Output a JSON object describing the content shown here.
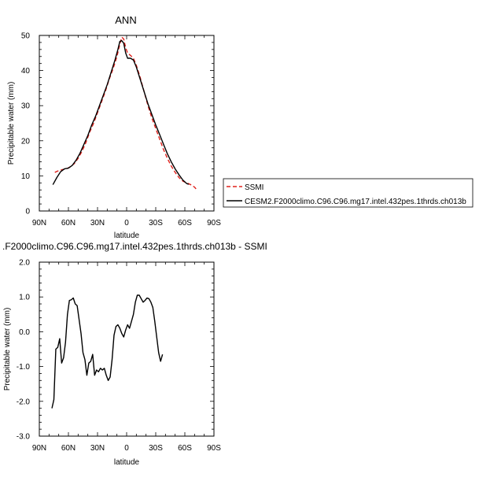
{
  "chart_data": [
    {
      "type": "line",
      "title": "ANN",
      "xlabel": "latitude",
      "ylabel": "Precipitable water (mm)",
      "xticks": [
        "90N",
        "60N",
        "30N",
        "0",
        "30S",
        "60S",
        "90S"
      ],
      "yticks": [
        "0",
        "10",
        "20",
        "30",
        "40",
        "50"
      ],
      "xlim": [
        -90,
        90
      ],
      "ylim": [
        0,
        50
      ],
      "x_direction": "north-to-south",
      "grid": false,
      "legend_position": "right",
      "series": [
        {
          "name": "SSMI",
          "color": "#e0201b",
          "dash": "dashed",
          "points": [
            [
              -74,
              11.0
            ],
            [
              -70,
              11.5
            ],
            [
              -66,
              11.8
            ],
            [
              -62,
              12.0
            ],
            [
              -58,
              12.6
            ],
            [
              -54,
              13.5
            ],
            [
              -50,
              15.0
            ],
            [
              -46,
              17.0
            ],
            [
              -42,
              19.5
            ],
            [
              -38,
              22.5
            ],
            [
              -34,
              25.0
            ],
            [
              -30,
              28.0
            ],
            [
              -26,
              31.0
            ],
            [
              -22,
              34.0
            ],
            [
              -18,
              37.5
            ],
            [
              -14,
              40.5
            ],
            [
              -10,
              44.0
            ],
            [
              -7,
              47.5
            ],
            [
              -5,
              49.5
            ],
            [
              -3,
              49.0
            ],
            [
              -1,
              46.5
            ],
            [
              1,
              45.0
            ],
            [
              4,
              44.3
            ],
            [
              7,
              43.5
            ],
            [
              10,
              41.5
            ],
            [
              14,
              38.0
            ],
            [
              18,
              34.0
            ],
            [
              22,
              30.0
            ],
            [
              26,
              26.5
            ],
            [
              30,
              23.5
            ],
            [
              34,
              20.5
            ],
            [
              38,
              17.5
            ],
            [
              42,
              15.0
            ],
            [
              46,
              12.8
            ],
            [
              50,
              11.0
            ],
            [
              54,
              9.5
            ],
            [
              58,
              8.5
            ],
            [
              62,
              8.0
            ],
            [
              66,
              7.5
            ],
            [
              70,
              6.8
            ],
            [
              73,
              5.8
            ]
          ]
        },
        {
          "name": "CESM2.F2000climo.C96.C96.mg17.intel.432pes.1thrds.ch013b",
          "color": "#000000",
          "dash": "solid",
          "points": [
            [
              -76,
              7.5
            ],
            [
              -72,
              9.5
            ],
            [
              -68,
              11.2
            ],
            [
              -64,
              12.0
            ],
            [
              -60,
              12.2
            ],
            [
              -56,
              13.0
            ],
            [
              -52,
              14.5
            ],
            [
              -48,
              16.5
            ],
            [
              -44,
              19.0
            ],
            [
              -40,
              21.5
            ],
            [
              -36,
              24.5
            ],
            [
              -32,
              27.0
            ],
            [
              -28,
              30.0
            ],
            [
              -24,
              33.0
            ],
            [
              -20,
              36.0
            ],
            [
              -16,
              39.5
            ],
            [
              -12,
              43.0
            ],
            [
              -9,
              46.0
            ],
            [
              -7,
              48.3
            ],
            [
              -5,
              48.5
            ],
            [
              -3,
              47.8
            ],
            [
              -1,
              45.0
            ],
            [
              1,
              43.5
            ],
            [
              4,
              43.5
            ],
            [
              7,
              43.0
            ],
            [
              10,
              41.0
            ],
            [
              14,
              37.5
            ],
            [
              18,
              34.0
            ],
            [
              22,
              30.5
            ],
            [
              26,
              27.5
            ],
            [
              30,
              24.5
            ],
            [
              34,
              21.8
            ],
            [
              38,
              19.0
            ],
            [
              42,
              16.3
            ],
            [
              46,
              14.0
            ],
            [
              50,
              12.0
            ],
            [
              54,
              10.3
            ],
            [
              58,
              8.8
            ],
            [
              62,
              7.8
            ],
            [
              64,
              7.6
            ]
          ]
        }
      ]
    },
    {
      "type": "line",
      "title": ".F2000climo.C96.C96.mg17.intel.432pes.1thrds.ch013b - SSMI",
      "xlabel": "latitude",
      "ylabel": "Precipitable water (mm)",
      "xticks": [
        "90N",
        "60N",
        "30N",
        "0",
        "30S",
        "60S",
        "90S"
      ],
      "yticks": [
        "-3.0",
        "-2.0",
        "-1.0",
        "0.0",
        "1.0",
        "2.0"
      ],
      "xlim": [
        -90,
        90
      ],
      "ylim": [
        -3,
        2
      ],
      "x_direction": "north-to-south",
      "grid": false,
      "series": [
        {
          "color": "#000000",
          "dash": "solid",
          "points": [
            [
              -77,
              -2.2
            ],
            [
              -75,
              -1.95
            ],
            [
              -73,
              -0.5
            ],
            [
              -71,
              -0.45
            ],
            [
              -69,
              -0.2
            ],
            [
              -67,
              -0.9
            ],
            [
              -65,
              -0.75
            ],
            [
              -63,
              -0.3
            ],
            [
              -61,
              0.5
            ],
            [
              -59,
              0.9
            ],
            [
              -57,
              0.92
            ],
            [
              -55,
              0.97
            ],
            [
              -53,
              0.8
            ],
            [
              -51,
              0.75
            ],
            [
              -49,
              0.35
            ],
            [
              -47,
              -0.05
            ],
            [
              -45,
              -0.6
            ],
            [
              -43,
              -0.8
            ],
            [
              -41,
              -1.25
            ],
            [
              -39,
              -0.9
            ],
            [
              -37,
              -0.85
            ],
            [
              -35,
              -0.65
            ],
            [
              -33,
              -1.25
            ],
            [
              -31,
              -1.1
            ],
            [
              -29,
              -1.15
            ],
            [
              -27,
              -1.05
            ],
            [
              -25,
              -1.1
            ],
            [
              -23,
              -1.05
            ],
            [
              -21,
              -1.25
            ],
            [
              -19,
              -1.4
            ],
            [
              -17,
              -1.3
            ],
            [
              -15,
              -0.8
            ],
            [
              -13,
              -0.1
            ],
            [
              -11,
              0.15
            ],
            [
              -9,
              0.2
            ],
            [
              -7,
              0.1
            ],
            [
              -5,
              -0.05
            ],
            [
              -3,
              -0.15
            ],
            [
              -1,
              0.05
            ],
            [
              1,
              0.2
            ],
            [
              3,
              0.1
            ],
            [
              5,
              0.3
            ],
            [
              7,
              0.5
            ],
            [
              9,
              0.85
            ],
            [
              11,
              1.05
            ],
            [
              13,
              1.05
            ],
            [
              15,
              0.95
            ],
            [
              17,
              0.85
            ],
            [
              19,
              0.9
            ],
            [
              21,
              0.97
            ],
            [
              23,
              0.95
            ],
            [
              25,
              0.85
            ],
            [
              27,
              0.7
            ],
            [
              29,
              0.3
            ],
            [
              31,
              -0.15
            ],
            [
              33,
              -0.6
            ],
            [
              35,
              -0.85
            ],
            [
              37,
              -0.65
            ]
          ]
        }
      ]
    }
  ]
}
